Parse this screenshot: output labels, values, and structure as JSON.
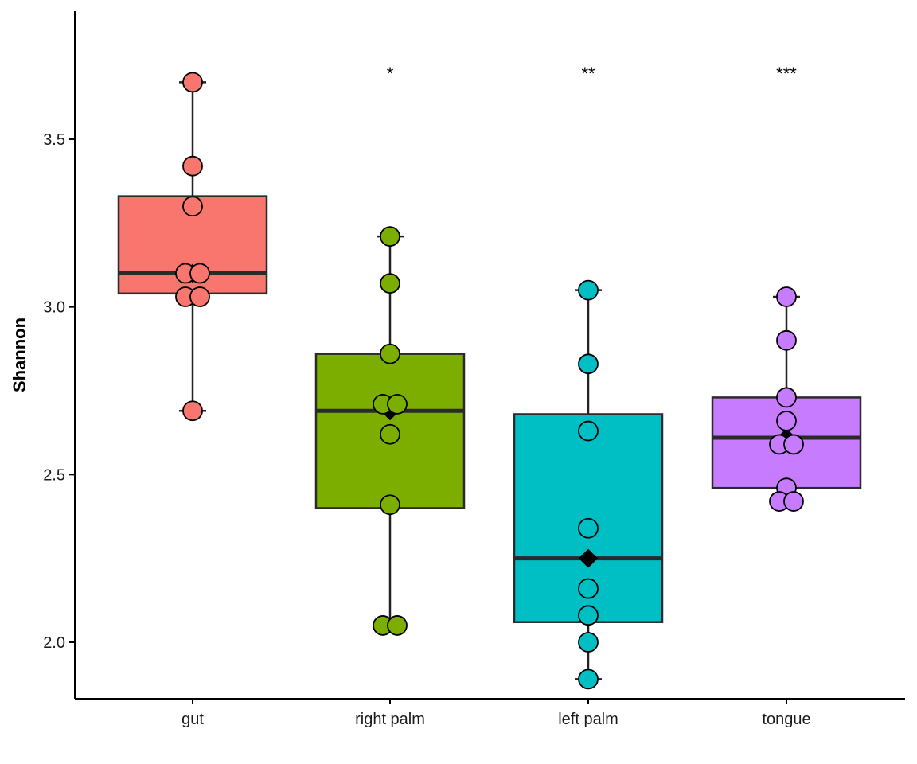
{
  "chart_data": {
    "type": "box",
    "title": "",
    "xlabel": "",
    "ylabel": "Shannon",
    "ylim": [
      1.83,
      3.87
    ],
    "yticks": [
      2.0,
      2.5,
      3.0,
      3.5
    ],
    "ytick_labels": [
      "2.0",
      "2.5",
      "3.0",
      "3.5"
    ],
    "grid": false,
    "legend": "none",
    "categories": [
      "gut",
      "right palm",
      "left palm",
      "tongue"
    ],
    "colors": [
      "#F8766D",
      "#7CAE00",
      "#00BFC4",
      "#C77CFF"
    ],
    "groups": [
      {
        "name": "gut",
        "whisker_low": 2.69,
        "q1": 3.04,
        "median": 3.1,
        "q3": 3.33,
        "whisker_high": 3.67,
        "mean": 3.1,
        "points": [
          3.67,
          3.42,
          3.3,
          3.1,
          3.1,
          3.03,
          3.03,
          2.69
        ],
        "significance": ""
      },
      {
        "name": "right palm",
        "whisker_low": 2.03,
        "q1": 2.4,
        "median": 2.69,
        "q3": 2.86,
        "whisker_high": 3.21,
        "mean": 2.69,
        "points": [
          3.21,
          3.07,
          2.86,
          2.71,
          2.71,
          2.62,
          2.41,
          2.05,
          2.05
        ],
        "significance": "*"
      },
      {
        "name": "left palm",
        "whisker_low": 1.89,
        "q1": 2.06,
        "median": 2.25,
        "q3": 2.68,
        "whisker_high": 3.05,
        "mean": 2.25,
        "points": [
          3.05,
          2.83,
          2.63,
          2.34,
          2.16,
          2.08,
          2.0,
          1.89
        ],
        "significance": "**"
      },
      {
        "name": "tongue",
        "whisker_low": 2.4,
        "q1": 2.46,
        "median": 2.61,
        "q3": 2.73,
        "whisker_high": 3.03,
        "mean": 2.61,
        "points": [
          3.03,
          2.9,
          2.73,
          2.66,
          2.59,
          2.59,
          2.46,
          2.42,
          2.42
        ],
        "significance": "***"
      }
    ]
  }
}
